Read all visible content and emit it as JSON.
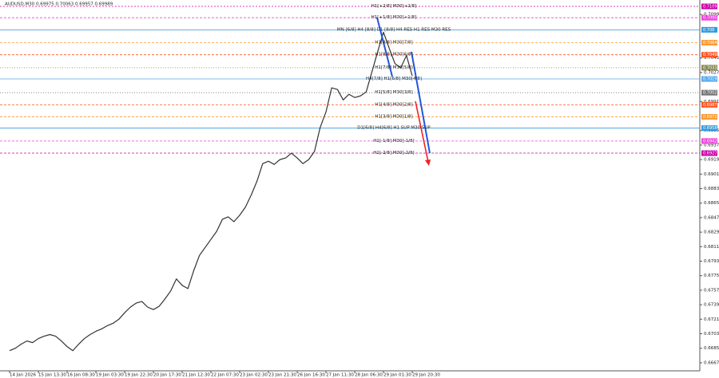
{
  "chart_data": {
    "type": "line",
    "title": "AUDUSD,M30  0.69975 0.70063 0.69957 0.69989",
    "color": "#333333",
    "categories": [
      "14 Jan 2026",
      null,
      null,
      null,
      null,
      "15 Jan 13:30",
      null,
      null,
      null,
      null,
      "16 Jan 08:30",
      null,
      null,
      null,
      null,
      "19 Jan 03:30",
      null,
      null,
      null,
      null,
      "19 Jan 22:30",
      null,
      null,
      null,
      null,
      "20 Jan 17:30",
      null,
      null,
      null,
      null,
      "21 Jan 12:30",
      null,
      null,
      null,
      null,
      "22 Jan 07:30",
      null,
      null,
      null,
      null,
      "23 Jan 02:30",
      null,
      null,
      null,
      null,
      "23 Jan 21:30",
      null,
      null,
      null,
      null,
      "26 Jan 16:30",
      null,
      null,
      null,
      null,
      "27 Jan 11:30",
      null,
      null,
      null,
      null,
      "28 Jan 06:30",
      null,
      null,
      null,
      null,
      "29 Jan 01:30",
      null,
      null,
      null,
      null,
      "29 Jan 20:30"
    ],
    "values": [
      0.6682,
      0.6685,
      0.669,
      0.6694,
      0.6692,
      0.6697,
      0.67,
      0.6702,
      0.67,
      0.6694,
      0.6687,
      0.6682,
      0.669,
      0.6697,
      0.6702,
      0.6706,
      0.6709,
      0.6713,
      0.6716,
      0.6721,
      0.6729,
      0.6736,
      0.6741,
      0.6743,
      0.6736,
      0.6733,
      0.6737,
      0.6746,
      0.6756,
      0.6771,
      0.6763,
      0.6759,
      0.6781,
      0.68,
      0.681,
      0.682,
      0.683,
      0.6845,
      0.6848,
      0.6842,
      0.685,
      0.686,
      0.6875,
      0.6892,
      0.6914,
      0.6917,
      0.6913,
      0.6919,
      0.6921,
      0.6927,
      0.6921,
      0.6914,
      0.6919,
      0.6929,
      0.6959,
      0.6978,
      0.7008,
      0.7006,
      0.6993,
      0.7,
      0.6996,
      0.6998,
      0.7003,
      0.7028,
      0.7053,
      0.7077,
      0.7057,
      0.7038,
      0.7033,
      0.7048,
      0.7023
    ],
    "ylim": [
      0.6657,
      0.7112
    ],
    "yticks": [
      {
        "value": 0.6667,
        "label": "0.66670"
      },
      {
        "value": 0.6685,
        "label": "0.66850"
      },
      {
        "value": 0.6703,
        "label": "0.67030"
      },
      {
        "value": 0.6721,
        "label": "0.67210"
      },
      {
        "value": 0.6739,
        "label": "0.67390"
      },
      {
        "value": 0.6757,
        "label": "0.67570"
      },
      {
        "value": 0.6775,
        "label": "0.67750"
      },
      {
        "value": 0.6793,
        "label": "0.67930"
      },
      {
        "value": 0.6811,
        "label": "0.68110"
      },
      {
        "value": 0.6829,
        "label": "0.68290"
      },
      {
        "value": 0.6847,
        "label": "0.68470"
      },
      {
        "value": 0.6865,
        "label": "0.68650"
      },
      {
        "value": 0.6883,
        "label": "0.68830"
      },
      {
        "value": 0.6901,
        "label": "0.69010"
      },
      {
        "value": 0.6919,
        "label": "0.69190"
      },
      {
        "value": 0.6937,
        "label": "0.69370"
      },
      {
        "value": 0.6955,
        "label": "0.69550"
      },
      {
        "value": 0.6991,
        "label": "0.69910"
      },
      {
        "value": 0.7027,
        "label": "0.70270"
      },
      {
        "value": 0.7045,
        "label": "0.70450"
      },
      {
        "value": 0.7099,
        "label": "0.70990"
      }
    ],
    "levels": [
      {
        "label": "H1[+2/8] M30[+2/8]",
        "value": 0.7109,
        "color": "#cc00aa",
        "dash": "2,2"
      },
      {
        "label": "H1[+1/8] M30[+1/8]",
        "value": 0.7095,
        "color": "#ee44dd",
        "dash": "3,2"
      },
      {
        "label": "MN [6/8] H4 [8/8] D1 [8/8] H4 RES H1 RES M30 RES",
        "value": 0.708,
        "color": "#3399dd",
        "dash": "none"
      },
      {
        "label": "H1[8/8] M30[7/8]",
        "value": 0.7064,
        "color": "#ff9933",
        "dash": "3,2"
      },
      {
        "label": "H1[8/8] M30[6/8]",
        "value": 0.7049,
        "color": "#ff5522",
        "dash": "3,2"
      },
      {
        "label": "H1[7/8] M30[5/8]",
        "value": 0.7033,
        "color": "#888855",
        "dash": "1,2"
      },
      {
        "label": "H4[7/8] H1[6/8] M30[4/8]",
        "value": 0.7019,
        "color": "#55aaee",
        "dash": "none"
      },
      {
        "label": "H1[5/8] M30[3/8]",
        "value": 0.7002,
        "color": "#777777",
        "dash": "1,2"
      },
      {
        "label": "H1[4/8] M30[2/8]",
        "value": 0.6987,
        "color": "#ff5522",
        "dash": "3,2"
      },
      {
        "label": "H1[3/8] M30[1/8]",
        "value": 0.6972,
        "color": "#ff9933",
        "dash": "3,2"
      },
      {
        "label": "D1[6/8] H4[6/8] H1 SUP M30 SUP",
        "value": 0.6958,
        "color": "#3399dd",
        "dash": "none"
      },
      {
        "label": "H1[-1/8] M30[-1/8]",
        "value": 0.6942,
        "color": "#ee44dd",
        "dash": "3,2"
      },
      {
        "label": "H1[-2/8] M30[-2/8]",
        "value": 0.6927,
        "color": "#cc00aa",
        "dash": "3,2"
      }
    ]
  }
}
